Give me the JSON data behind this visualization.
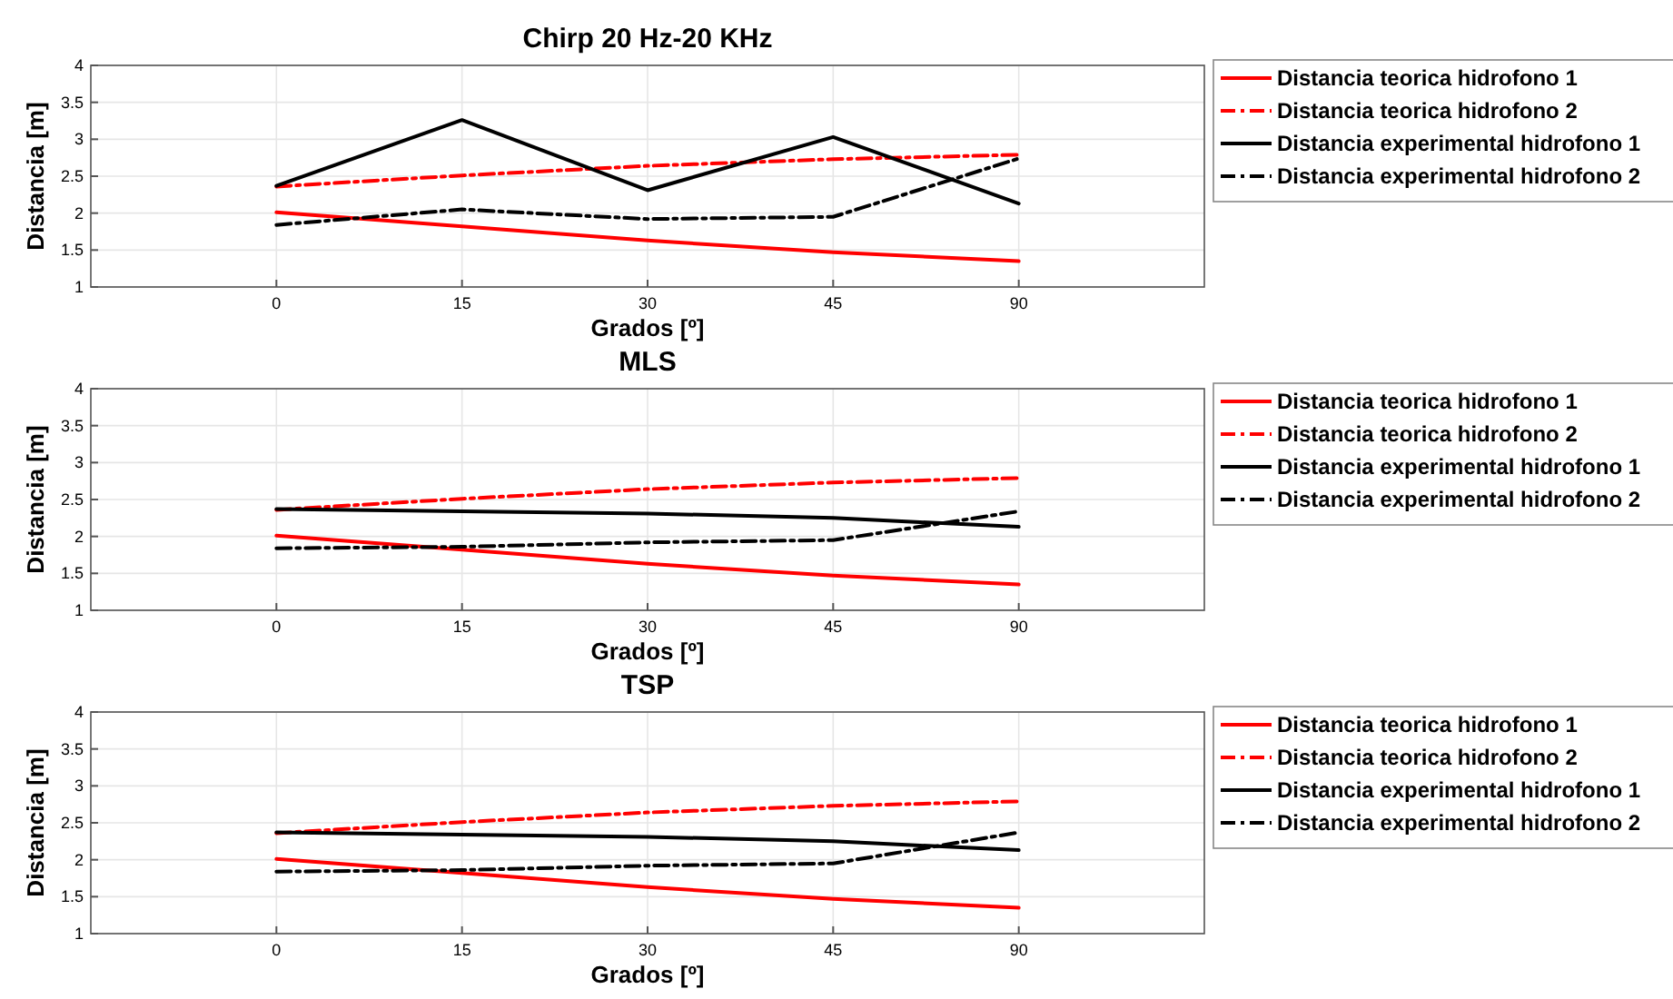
{
  "chart_data": [
    {
      "type": "line",
      "title": "Chirp 20 Hz-20 KHz",
      "xlabel": "Grados [º]",
      "ylabel": "Distancia [m]",
      "categories": [
        "0",
        "15",
        "30",
        "45",
        "90"
      ],
      "ylim": [
        1,
        4
      ],
      "yticks": [
        1,
        1.5,
        2,
        2.5,
        3,
        3.5,
        4
      ],
      "grid": true,
      "legend": "right",
      "series": [
        {
          "name": "Distancia teorica hidrofono 1",
          "color": "#ff0000",
          "line_style": "solid",
          "values": [
            2.01,
            1.82,
            1.63,
            1.47,
            1.35
          ]
        },
        {
          "name": "Distancia teorica hidrofono 2",
          "color": "#ff0000",
          "line_style": "dashed",
          "values": [
            2.36,
            2.51,
            2.64,
            2.73,
            2.79
          ]
        },
        {
          "name": "Distancia experimental hidrofono 1",
          "color": "#000000",
          "line_style": "solid",
          "values": [
            2.37,
            3.26,
            2.31,
            3.03,
            2.13
          ]
        },
        {
          "name": "Distancia experimental hidrofono 2",
          "color": "#000000",
          "line_style": "dashed",
          "values": [
            1.84,
            2.05,
            1.92,
            1.95,
            2.74
          ]
        }
      ]
    },
    {
      "type": "line",
      "title": "MLS",
      "xlabel": "Grados [º]",
      "ylabel": "Distancia [m]",
      "categories": [
        "0",
        "15",
        "30",
        "45",
        "90"
      ],
      "ylim": [
        1,
        4
      ],
      "yticks": [
        1,
        1.5,
        2,
        2.5,
        3,
        3.5,
        4
      ],
      "grid": true,
      "legend": "right",
      "series": [
        {
          "name": "Distancia teorica hidrofono 1",
          "color": "#ff0000",
          "line_style": "solid",
          "values": [
            2.01,
            1.82,
            1.63,
            1.47,
            1.35
          ]
        },
        {
          "name": "Distancia teorica hidrofono 2",
          "color": "#ff0000",
          "line_style": "dashed",
          "values": [
            2.36,
            2.51,
            2.64,
            2.73,
            2.79
          ]
        },
        {
          "name": "Distancia experimental hidrofono 1",
          "color": "#000000",
          "line_style": "solid",
          "values": [
            2.37,
            2.34,
            2.31,
            2.25,
            2.13
          ]
        },
        {
          "name": "Distancia experimental hidrofono 2",
          "color": "#000000",
          "line_style": "dashed",
          "values": [
            1.84,
            1.86,
            1.92,
            1.95,
            2.34
          ]
        }
      ]
    },
    {
      "type": "line",
      "title": "TSP",
      "xlabel": "Grados [º]",
      "ylabel": "Distancia [m]",
      "categories": [
        "0",
        "15",
        "30",
        "45",
        "90"
      ],
      "ylim": [
        1,
        4
      ],
      "yticks": [
        1,
        1.5,
        2,
        2.5,
        3,
        3.5,
        4
      ],
      "grid": true,
      "legend": "right",
      "series": [
        {
          "name": "Distancia teorica hidrofono 1",
          "color": "#ff0000",
          "line_style": "solid",
          "values": [
            2.01,
            1.82,
            1.63,
            1.47,
            1.35
          ]
        },
        {
          "name": "Distancia teorica hidrofono 2",
          "color": "#ff0000",
          "line_style": "dashed",
          "values": [
            2.36,
            2.51,
            2.64,
            2.73,
            2.79
          ]
        },
        {
          "name": "Distancia experimental hidrofono 1",
          "color": "#000000",
          "line_style": "solid",
          "values": [
            2.37,
            2.34,
            2.31,
            2.25,
            2.13
          ]
        },
        {
          "name": "Distancia experimental hidrofono 2",
          "color": "#000000",
          "line_style": "dashed",
          "values": [
            1.84,
            1.86,
            1.92,
            1.95,
            2.37
          ]
        }
      ]
    }
  ]
}
